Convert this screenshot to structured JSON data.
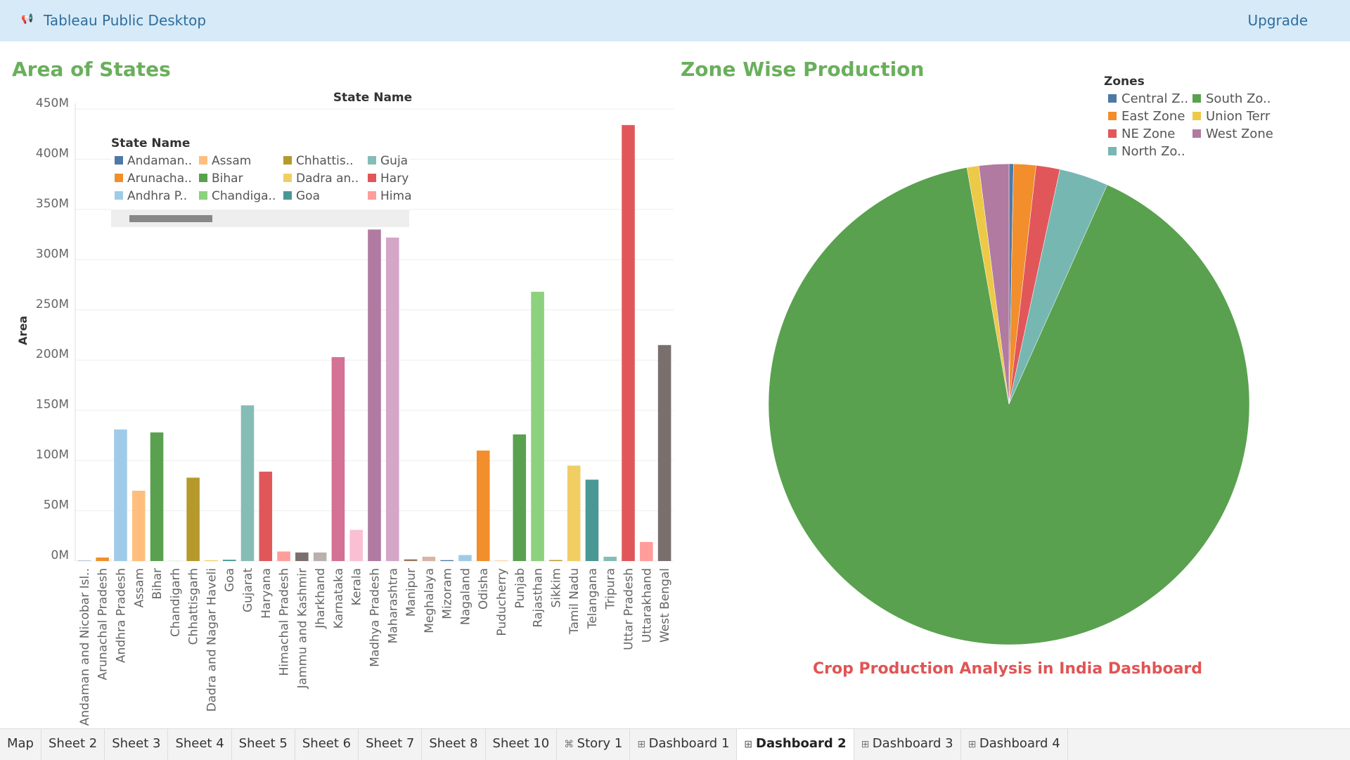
{
  "header": {
    "app_title": "Tableau Public Desktop",
    "upgrade": "Upgrade"
  },
  "chart_data": [
    {
      "type": "bar",
      "title": "Area of States",
      "x_header": "State Name",
      "y_label": "Area",
      "legend_title": "State Name",
      "legend_entries": [
        "Andaman..",
        "Arunacha..",
        "Andhra P..",
        "Assam",
        "Bihar",
        "Chandiga..",
        "Chhattis..",
        "Dadra an..",
        "Goa",
        "Guja",
        "Hary",
        "Hima"
      ],
      "categories": [
        "Andaman and Nicobar Isl..",
        "Arunachal Pradesh",
        "Andhra Pradesh",
        "Assam",
        "Bihar",
        "Chandigarh",
        "Chhattisgarh",
        "Dadra and Nagar Haveli",
        "Goa",
        "Gujarat",
        "Haryana",
        "Himachal Pradesh",
        "Jammu and Kashmir",
        "Jharkhand",
        "Karnataka",
        "Kerala",
        "Madhya Pradesh",
        "Maharashtra",
        "Manipur",
        "Meghalaya",
        "Mizoram",
        "Nagaland",
        "Odisha",
        "Puducherry",
        "Punjab",
        "Rajasthan",
        "Sikkim",
        "Tamil Nadu",
        "Telangana",
        "Tripura",
        "Uttar Pradesh",
        "Uttarakhand",
        "West Bengal"
      ],
      "values": [
        300000,
        3500000,
        131000000,
        70000000,
        128000000,
        100000,
        83000000,
        800000,
        1300000,
        155000000,
        89000000,
        9500000,
        8500000,
        8500000,
        203000000,
        31000000,
        330000000,
        322000000,
        1700000,
        4300000,
        900000,
        6000000,
        110000000,
        500000,
        126000000,
        268000000,
        1000000,
        95000000,
        81000000,
        4300000,
        434000000,
        19000000,
        215000000
      ],
      "colors": [
        "#4e79a7",
        "#f28e2b",
        "#a0cbe8",
        "#ffbe7d",
        "#59a14f",
        "#8cd17d",
        "#b6992d",
        "#f1ce63",
        "#499894",
        "#86bcb6",
        "#e15759",
        "#ff9d9a",
        "#79706e",
        "#bab0ac",
        "#d37295",
        "#fabfd2",
        "#b07aa1",
        "#d4a6c8",
        "#9d7660",
        "#d7b5a6",
        "#4e79a7",
        "#a0cbe8",
        "#f28e2b",
        "#ffbe7d",
        "#59a14f",
        "#8cd17d",
        "#b6992d",
        "#f1ce63",
        "#499894",
        "#86bcb6",
        "#e15759",
        "#ff9d9a",
        "#79706e"
      ],
      "ylim": [
        0,
        450000000
      ],
      "yticks": [
        {
          "value": 0,
          "label": "0M"
        },
        {
          "value": 50000000,
          "label": "50M"
        },
        {
          "value": 100000000,
          "label": "100M"
        },
        {
          "value": 150000000,
          "label": "150M"
        },
        {
          "value": 200000000,
          "label": "200M"
        },
        {
          "value": 250000000,
          "label": "250M"
        },
        {
          "value": 300000000,
          "label": "300M"
        },
        {
          "value": 350000000,
          "label": "350M"
        },
        {
          "value": 400000000,
          "label": "400M"
        },
        {
          "value": 450000000,
          "label": "450M"
        }
      ],
      "grid": true
    },
    {
      "type": "pie",
      "title": "Zone Wise Production",
      "legend_title": "Zones",
      "categories": [
        "Central Z..",
        "East Zone",
        "NE Zone",
        "North Zo..",
        "South Zo..",
        "Union Terr",
        "West Zone"
      ],
      "values": [
        0.3,
        1.5,
        1.6,
        3.3,
        90.5,
        0.8,
        2.0
      ],
      "colors": [
        "#4e79a7",
        "#f28e2b",
        "#e15759",
        "#76b7b2",
        "#59a14f",
        "#edc948",
        "#b07aa1"
      ]
    }
  ],
  "dashboard_title": "Crop Production Analysis in India Dashboard",
  "tabs": [
    {
      "label": "Map",
      "kind": "sheet"
    },
    {
      "label": "Sheet 2",
      "kind": "sheet"
    },
    {
      "label": "Sheet 3",
      "kind": "sheet"
    },
    {
      "label": "Sheet 4",
      "kind": "sheet"
    },
    {
      "label": "Sheet 5",
      "kind": "sheet"
    },
    {
      "label": "Sheet 6",
      "kind": "sheet"
    },
    {
      "label": "Sheet 7",
      "kind": "sheet"
    },
    {
      "label": "Sheet 8",
      "kind": "sheet"
    },
    {
      "label": "Sheet 10",
      "kind": "sheet"
    },
    {
      "label": "Story 1",
      "kind": "story"
    },
    {
      "label": "Dashboard 1",
      "kind": "dashboard"
    },
    {
      "label": "Dashboard 2",
      "kind": "dashboard"
    },
    {
      "label": "Dashboard 3",
      "kind": "dashboard"
    },
    {
      "label": "Dashboard 4",
      "kind": "dashboard"
    }
  ],
  "active_tab": 11
}
